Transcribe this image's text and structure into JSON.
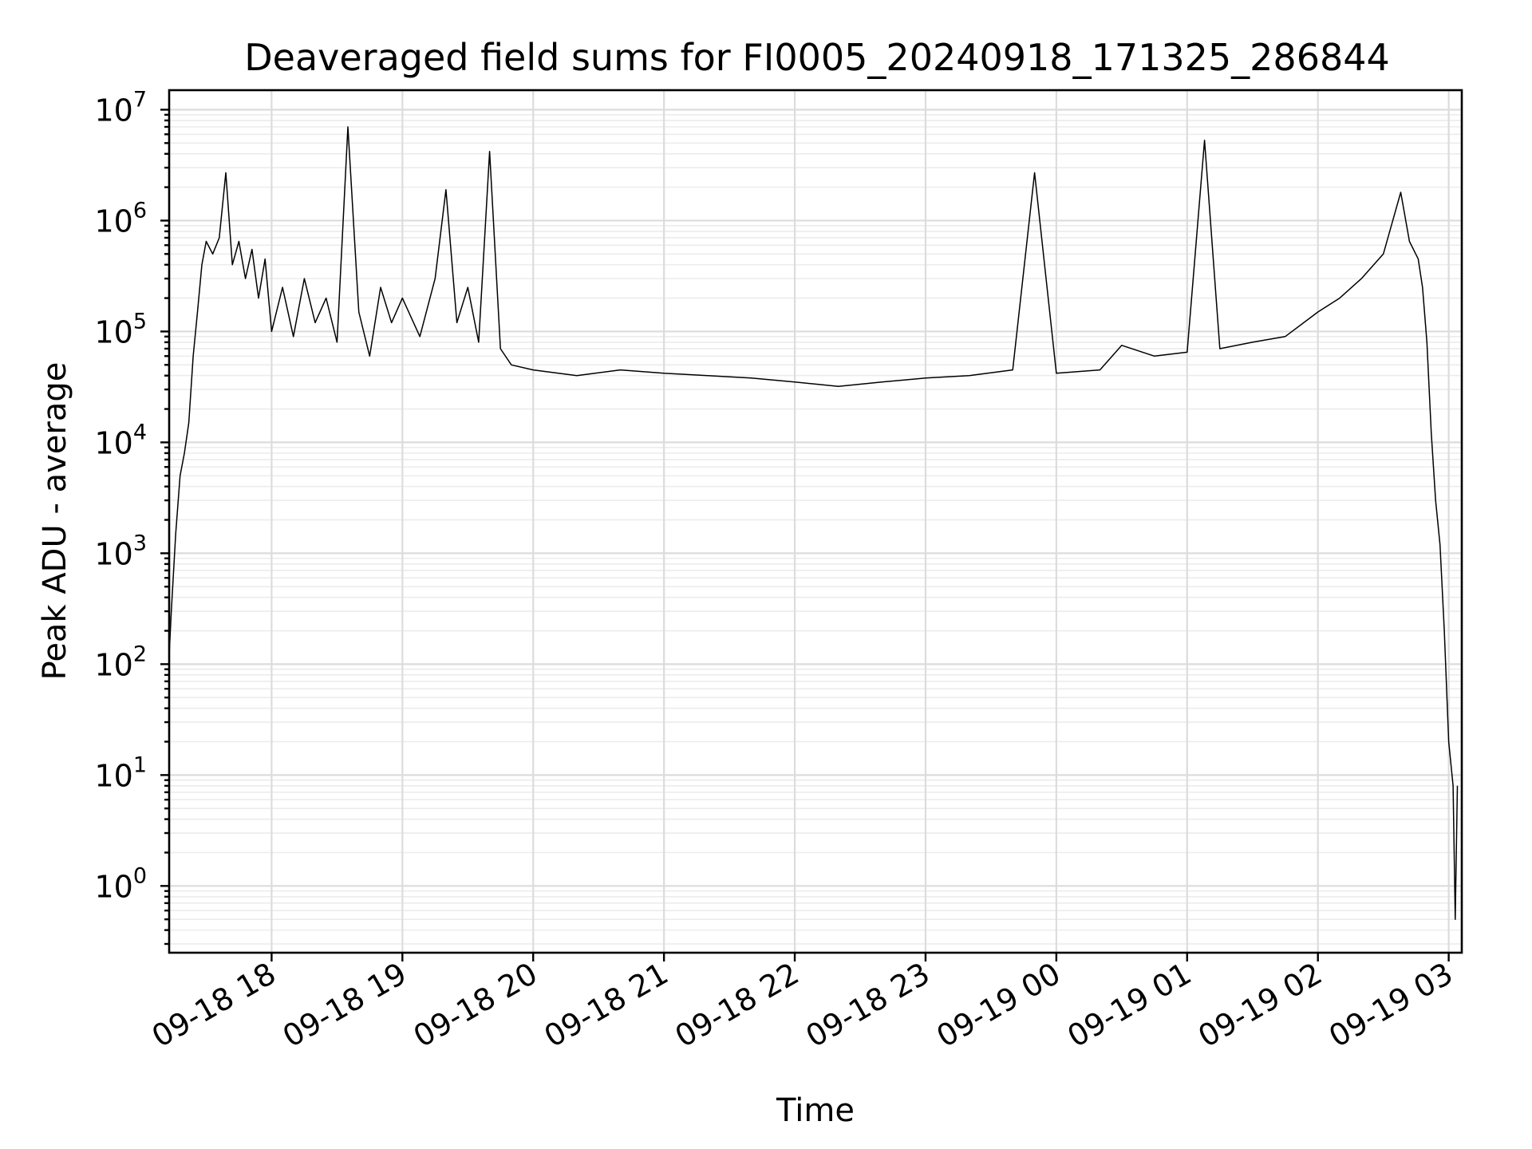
{
  "chart_data": {
    "type": "line",
    "title": "Deaveraged field sums for FI0005_20240918_171325_286844",
    "xlabel": "Time",
    "ylabel": "Peak ADU - average",
    "y_scale": "log",
    "ylim": [
      0.25,
      15000000
    ],
    "xlim": [
      "2024-09-18 17:13",
      "2024-09-19 03:06"
    ],
    "grid": true,
    "x_ticks": [
      {
        "t": "2024-09-18 18:00",
        "label": "09-18 18"
      },
      {
        "t": "2024-09-18 19:00",
        "label": "09-18 19"
      },
      {
        "t": "2024-09-18 20:00",
        "label": "09-18 20"
      },
      {
        "t": "2024-09-18 21:00",
        "label": "09-18 21"
      },
      {
        "t": "2024-09-18 22:00",
        "label": "09-18 22"
      },
      {
        "t": "2024-09-18 23:00",
        "label": "09-18 23"
      },
      {
        "t": "2024-09-19 00:00",
        "label": "09-19 00"
      },
      {
        "t": "2024-09-19 01:00",
        "label": "09-19 01"
      },
      {
        "t": "2024-09-19 02:00",
        "label": "09-19 02"
      },
      {
        "t": "2024-09-19 03:00",
        "label": "09-19 03"
      }
    ],
    "y_ticks": [
      {
        "value": 1,
        "base": "10",
        "exp": "0"
      },
      {
        "value": 10,
        "base": "10",
        "exp": "1"
      },
      {
        "value": 100,
        "base": "10",
        "exp": "2"
      },
      {
        "value": 1000,
        "base": "10",
        "exp": "3"
      },
      {
        "value": 10000,
        "base": "10",
        "exp": "4"
      },
      {
        "value": 100000,
        "base": "10",
        "exp": "5"
      },
      {
        "value": 1000000,
        "base": "10",
        "exp": "6"
      },
      {
        "value": 10000000,
        "base": "10",
        "exp": "7"
      }
    ],
    "series": [
      {
        "color": "#000000",
        "points": [
          [
            "2024-09-18 17:13",
            120
          ],
          [
            "2024-09-18 17:14",
            300
          ],
          [
            "2024-09-18 17:16",
            1500
          ],
          [
            "2024-09-18 17:18",
            5000
          ],
          [
            "2024-09-18 17:20",
            8000
          ],
          [
            "2024-09-18 17:22",
            15000
          ],
          [
            "2024-09-18 17:24",
            60000
          ],
          [
            "2024-09-18 17:26",
            150000
          ],
          [
            "2024-09-18 17:28",
            400000
          ],
          [
            "2024-09-18 17:30",
            650000
          ],
          [
            "2024-09-18 17:33",
            500000
          ],
          [
            "2024-09-18 17:36",
            700000
          ],
          [
            "2024-09-18 17:39",
            2700000
          ],
          [
            "2024-09-18 17:42",
            400000
          ],
          [
            "2024-09-18 17:45",
            650000
          ],
          [
            "2024-09-18 17:48",
            300000
          ],
          [
            "2024-09-18 17:51",
            550000
          ],
          [
            "2024-09-18 17:54",
            200000
          ],
          [
            "2024-09-18 17:57",
            450000
          ],
          [
            "2024-09-18 18:00",
            100000
          ],
          [
            "2024-09-18 18:05",
            250000
          ],
          [
            "2024-09-18 18:10",
            90000
          ],
          [
            "2024-09-18 18:15",
            300000
          ],
          [
            "2024-09-18 18:20",
            120000
          ],
          [
            "2024-09-18 18:25",
            200000
          ],
          [
            "2024-09-18 18:30",
            80000
          ],
          [
            "2024-09-18 18:35",
            7000000
          ],
          [
            "2024-09-18 18:40",
            150000
          ],
          [
            "2024-09-18 18:45",
            60000
          ],
          [
            "2024-09-18 18:50",
            250000
          ],
          [
            "2024-09-18 18:55",
            120000
          ],
          [
            "2024-09-18 19:00",
            200000
          ],
          [
            "2024-09-18 19:08",
            90000
          ],
          [
            "2024-09-18 19:15",
            300000
          ],
          [
            "2024-09-18 19:20",
            1900000
          ],
          [
            "2024-09-18 19:25",
            120000
          ],
          [
            "2024-09-18 19:30",
            250000
          ],
          [
            "2024-09-18 19:35",
            80000
          ],
          [
            "2024-09-18 19:40",
            4200000
          ],
          [
            "2024-09-18 19:45",
            70000
          ],
          [
            "2024-09-18 19:50",
            50000
          ],
          [
            "2024-09-18 20:00",
            45000
          ],
          [
            "2024-09-18 20:20",
            40000
          ],
          [
            "2024-09-18 20:40",
            45000
          ],
          [
            "2024-09-18 21:00",
            42000
          ],
          [
            "2024-09-18 21:20",
            40000
          ],
          [
            "2024-09-18 21:40",
            38000
          ],
          [
            "2024-09-18 22:00",
            35000
          ],
          [
            "2024-09-18 22:20",
            32000
          ],
          [
            "2024-09-18 22:40",
            35000
          ],
          [
            "2024-09-18 23:00",
            38000
          ],
          [
            "2024-09-18 23:20",
            40000
          ],
          [
            "2024-09-18 23:40",
            45000
          ],
          [
            "2024-09-18 23:50",
            2700000
          ],
          [
            "2024-09-19 00:00",
            42000
          ],
          [
            "2024-09-19 00:20",
            45000
          ],
          [
            "2024-09-19 00:30",
            75000
          ],
          [
            "2024-09-19 00:45",
            60000
          ],
          [
            "2024-09-19 01:00",
            65000
          ],
          [
            "2024-09-19 01:08",
            5300000
          ],
          [
            "2024-09-19 01:15",
            70000
          ],
          [
            "2024-09-19 01:30",
            80000
          ],
          [
            "2024-09-19 01:45",
            90000
          ],
          [
            "2024-09-19 02:00",
            150000
          ],
          [
            "2024-09-19 02:10",
            200000
          ],
          [
            "2024-09-19 02:20",
            300000
          ],
          [
            "2024-09-19 02:30",
            500000
          ],
          [
            "2024-09-19 02:38",
            1800000
          ],
          [
            "2024-09-19 02:42",
            650000
          ],
          [
            "2024-09-19 02:46",
            450000
          ],
          [
            "2024-09-19 02:48",
            250000
          ],
          [
            "2024-09-19 02:50",
            80000
          ],
          [
            "2024-09-19 02:52",
            12000
          ],
          [
            "2024-09-19 02:54",
            3000
          ],
          [
            "2024-09-19 02:56",
            1200
          ],
          [
            "2024-09-19 02:58",
            200
          ],
          [
            "2024-09-19 03:00",
            20
          ],
          [
            "2024-09-19 03:02",
            8
          ],
          [
            "2024-09-19 03:03",
            0.5
          ],
          [
            "2024-09-19 03:04",
            8
          ]
        ]
      }
    ]
  }
}
